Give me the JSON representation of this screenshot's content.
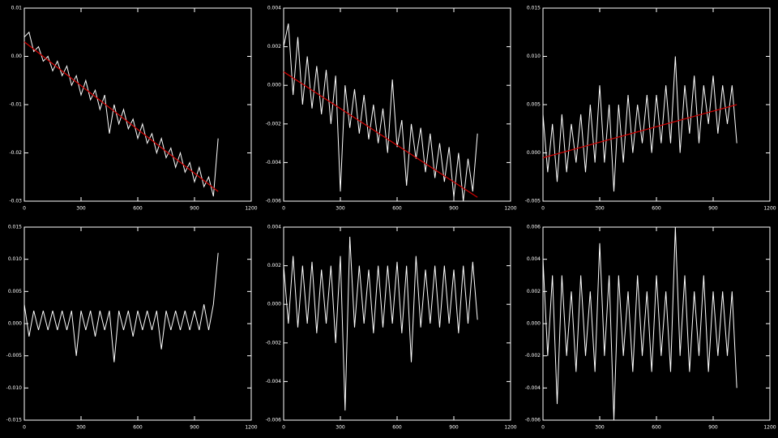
{
  "chart_data": [
    {
      "type": "line",
      "xlim": [
        0,
        1200
      ],
      "xticks": [
        0,
        300,
        600,
        900,
        1200
      ],
      "ylim": [
        -0.03,
        0.01
      ],
      "yticks": [
        -0.03,
        -0.02,
        -0.01,
        {
          "value": 0,
          "label": "0.00"
        },
        0.01
      ],
      "series": [
        {
          "color": "#ffffff",
          "x": [
            0,
            25,
            50,
            75,
            100,
            125,
            150,
            175,
            200,
            225,
            250,
            275,
            300,
            325,
            350,
            375,
            400,
            425,
            450,
            475,
            500,
            525,
            550,
            575,
            600,
            625,
            650,
            675,
            700,
            725,
            750,
            775,
            800,
            825,
            850,
            875,
            900,
            925,
            950,
            975,
            1000,
            1025
          ],
          "values": [
            0.004,
            0.005,
            0.001,
            0.002,
            -0.001,
            0.0,
            -0.003,
            -0.001,
            -0.004,
            -0.002,
            -0.006,
            -0.004,
            -0.008,
            -0.005,
            -0.009,
            -0.007,
            -0.011,
            -0.008,
            -0.016,
            -0.01,
            -0.014,
            -0.011,
            -0.015,
            -0.013,
            -0.017,
            -0.014,
            -0.018,
            -0.016,
            -0.02,
            -0.017,
            -0.021,
            -0.019,
            -0.023,
            -0.02,
            -0.024,
            -0.022,
            -0.026,
            -0.023,
            -0.027,
            -0.025,
            -0.029,
            -0.017
          ]
        },
        {
          "color": "#cc0000",
          "x": [
            0,
            1025
          ],
          "values": [
            0.003,
            -0.028
          ]
        }
      ]
    },
    {
      "type": "line",
      "xlim": [
        0,
        1200
      ],
      "xticks": [
        0,
        300,
        600,
        900,
        1200
      ],
      "ylim": [
        -0.006,
        0.004
      ],
      "yticks": [
        -0.006,
        -0.004,
        -0.002,
        {
          "value": 0,
          "label": "0.000"
        },
        0.002,
        0.004
      ],
      "series": [
        {
          "color": "#ffffff",
          "x": [
            0,
            25,
            50,
            75,
            100,
            125,
            150,
            175,
            200,
            225,
            250,
            275,
            300,
            325,
            350,
            375,
            400,
            425,
            450,
            475,
            500,
            525,
            550,
            575,
            600,
            625,
            650,
            675,
            700,
            725,
            750,
            775,
            800,
            825,
            850,
            875,
            900,
            925,
            950,
            975,
            1000,
            1025
          ],
          "values": [
            0.002,
            0.0032,
            -0.0005,
            0.0025,
            -0.001,
            0.0015,
            -0.0012,
            0.001,
            -0.0015,
            0.0008,
            -0.002,
            0.0005,
            -0.0055,
            0.0,
            -0.0022,
            -0.0002,
            -0.0025,
            -0.0005,
            -0.0028,
            -0.001,
            -0.003,
            -0.0012,
            -0.0035,
            0.0003,
            -0.0032,
            -0.0018,
            -0.0052,
            -0.002,
            -0.0038,
            -0.0022,
            -0.0045,
            -0.0025,
            -0.0048,
            -0.003,
            -0.005,
            -0.0032,
            -0.0058,
            -0.0035,
            -0.006,
            -0.0038,
            -0.0055,
            -0.0025
          ]
        },
        {
          "color": "#cc0000",
          "x": [
            0,
            1025
          ],
          "values": [
            0.0007,
            -0.0058
          ]
        }
      ]
    },
    {
      "type": "line",
      "xlim": [
        0,
        1200
      ],
      "xticks": [
        0,
        300,
        600,
        900,
        1200
      ],
      "ylim": [
        -0.005,
        0.015
      ],
      "yticks": [
        -0.005,
        {
          "value": 0,
          "label": "0.000"
        },
        0.005,
        {
          "value": 0.01,
          "label": "0.010"
        },
        0.015
      ],
      "series": [
        {
          "color": "#ffffff",
          "x": [
            0,
            25,
            50,
            75,
            100,
            125,
            150,
            175,
            200,
            225,
            250,
            275,
            300,
            325,
            350,
            375,
            400,
            425,
            450,
            475,
            500,
            525,
            550,
            575,
            600,
            625,
            650,
            675,
            700,
            725,
            750,
            775,
            800,
            825,
            850,
            875,
            900,
            925,
            950,
            975,
            1000,
            1025
          ],
          "values": [
            0.004,
            -0.002,
            0.003,
            -0.003,
            0.004,
            -0.002,
            0.003,
            -0.001,
            0.004,
            -0.002,
            0.005,
            -0.001,
            0.007,
            -0.001,
            0.005,
            -0.004,
            0.005,
            -0.001,
            0.006,
            0.0,
            0.005,
            0.001,
            0.006,
            0.0,
            0.006,
            0.001,
            0.007,
            0.001,
            0.01,
            0.0,
            0.007,
            0.002,
            0.008,
            0.001,
            0.007,
            0.003,
            0.008,
            0.002,
            0.007,
            0.003,
            0.007,
            0.001
          ]
        },
        {
          "color": "#cc0000",
          "x": [
            0,
            1025
          ],
          "values": [
            -0.0005,
            0.005
          ]
        }
      ]
    },
    {
      "type": "line",
      "xlim": [
        0,
        1200
      ],
      "xticks": [
        0,
        300,
        600,
        900,
        1200
      ],
      "ylim": [
        -0.015,
        0.015
      ],
      "yticks": [
        -0.015,
        {
          "value": -0.01,
          "label": "-0.010"
        },
        -0.005,
        {
          "value": 0,
          "label": "0.000"
        },
        0.005,
        {
          "value": 0.01,
          "label": "0.010"
        },
        0.015
      ],
      "series": [
        {
          "color": "#ffffff",
          "x": [
            0,
            25,
            50,
            75,
            100,
            125,
            150,
            175,
            200,
            225,
            250,
            275,
            300,
            325,
            350,
            375,
            400,
            425,
            450,
            475,
            500,
            525,
            550,
            575,
            600,
            625,
            650,
            675,
            700,
            725,
            750,
            775,
            800,
            825,
            850,
            875,
            900,
            925,
            950,
            975,
            1000,
            1025
          ],
          "values": [
            0.003,
            -0.002,
            0.002,
            -0.001,
            0.002,
            -0.001,
            0.002,
            -0.001,
            0.002,
            -0.001,
            0.002,
            -0.005,
            0.002,
            -0.001,
            0.002,
            -0.002,
            0.002,
            -0.001,
            0.002,
            -0.006,
            0.002,
            -0.001,
            0.002,
            -0.002,
            0.002,
            -0.001,
            0.002,
            -0.001,
            0.002,
            -0.004,
            0.002,
            -0.001,
            0.002,
            -0.001,
            0.002,
            -0.001,
            0.002,
            -0.001,
            0.003,
            -0.001,
            0.003,
            0.011
          ]
        }
      ]
    },
    {
      "type": "line",
      "xlim": [
        0,
        1200
      ],
      "xticks": [
        0,
        300,
        600,
        900,
        1200
      ],
      "ylim": [
        -0.006,
        0.004
      ],
      "yticks": [
        -0.006,
        -0.004,
        -0.002,
        {
          "value": 0,
          "label": "0.000"
        },
        0.002,
        0.004
      ],
      "series": [
        {
          "color": "#ffffff",
          "x": [
            0,
            25,
            50,
            75,
            100,
            125,
            150,
            175,
            200,
            225,
            250,
            275,
            300,
            325,
            350,
            375,
            400,
            425,
            450,
            475,
            500,
            525,
            550,
            575,
            600,
            625,
            650,
            675,
            700,
            725,
            750,
            775,
            800,
            825,
            850,
            875,
            900,
            925,
            950,
            975,
            1000,
            1025
          ],
          "values": [
            0.002,
            -0.001,
            0.0025,
            -0.0012,
            0.002,
            -0.001,
            0.0022,
            -0.0015,
            0.0018,
            -0.001,
            0.002,
            -0.002,
            0.0025,
            -0.0055,
            0.0035,
            -0.0012,
            0.002,
            -0.001,
            0.0018,
            -0.0015,
            0.002,
            -0.0012,
            0.002,
            -0.001,
            0.0022,
            -0.0015,
            0.002,
            -0.003,
            0.0025,
            -0.0012,
            0.0018,
            -0.001,
            0.002,
            -0.0012,
            0.002,
            -0.001,
            0.0018,
            -0.0015,
            0.002,
            -0.001,
            0.0022,
            -0.0008
          ]
        }
      ]
    },
    {
      "type": "line",
      "xlim": [
        0,
        1200
      ],
      "xticks": [
        0,
        300,
        600,
        900,
        1200
      ],
      "ylim": [
        -0.006,
        0.006
      ],
      "yticks": [
        -0.006,
        -0.004,
        -0.002,
        {
          "value": 0,
          "label": "0.000"
        },
        0.002,
        0.004,
        0.006
      ],
      "series": [
        {
          "color": "#ffffff",
          "x": [
            0,
            25,
            50,
            75,
            100,
            125,
            150,
            175,
            200,
            225,
            250,
            275,
            300,
            325,
            350,
            375,
            400,
            425,
            450,
            475,
            500,
            525,
            550,
            575,
            600,
            625,
            650,
            675,
            700,
            725,
            750,
            775,
            800,
            825,
            850,
            875,
            900,
            925,
            950,
            975,
            1000,
            1025
          ],
          "values": [
            0.004,
            -0.002,
            0.003,
            -0.005,
            0.003,
            -0.002,
            0.002,
            -0.003,
            0.003,
            -0.002,
            0.002,
            -0.003,
            0.005,
            -0.002,
            0.003,
            -0.006,
            0.003,
            -0.002,
            0.002,
            -0.003,
            0.003,
            -0.002,
            0.002,
            -0.003,
            0.003,
            -0.002,
            0.002,
            -0.003,
            0.006,
            -0.002,
            0.003,
            -0.003,
            0.002,
            -0.002,
            0.003,
            -0.003,
            0.002,
            -0.002,
            0.002,
            -0.002,
            0.002,
            -0.004
          ]
        }
      ]
    }
  ]
}
